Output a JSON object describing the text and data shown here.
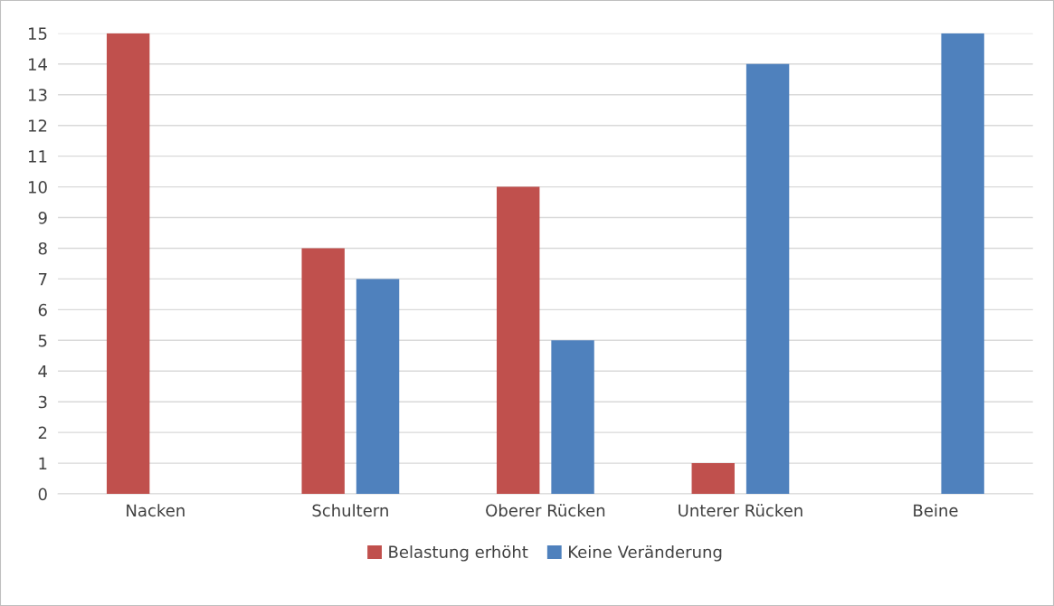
{
  "chart_data": {
    "type": "bar",
    "categories": [
      "Nacken",
      "Schultern",
      "Oberer Rücken",
      "Unterer Rücken",
      "Beine"
    ],
    "series": [
      {
        "name": "Belastung erhöht",
        "color": "#c0504d",
        "values": [
          15,
          8,
          10,
          1,
          null
        ]
      },
      {
        "name": "Keine Veränderung",
        "color": "#4f81bd",
        "values": [
          null,
          7,
          5,
          14,
          15
        ]
      }
    ],
    "ylim": [
      0,
      15
    ],
    "yticks": [
      0,
      1,
      2,
      3,
      4,
      5,
      6,
      7,
      8,
      9,
      10,
      11,
      12,
      13,
      14,
      15
    ],
    "grid": "y",
    "legend": "bottom"
  }
}
